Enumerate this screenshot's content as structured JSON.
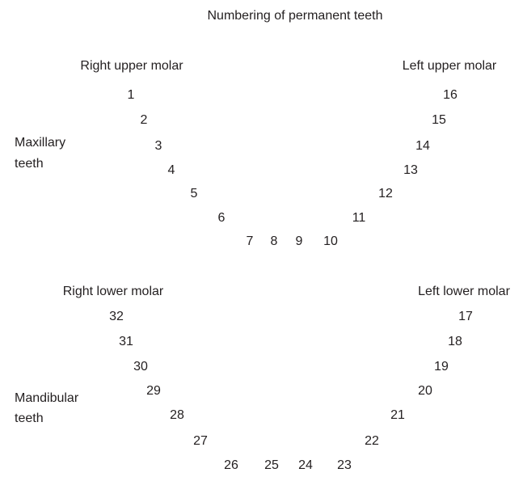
{
  "title": "Numbering of permanent teeth",
  "upper": {
    "right_label": "Right upper molar",
    "left_label": "Left upper molar",
    "group_label": [
      "Maxillary",
      "teeth"
    ],
    "teeth": [
      1,
      2,
      3,
      4,
      5,
      6,
      7,
      8,
      9,
      10,
      11,
      12,
      13,
      14,
      15,
      16
    ]
  },
  "lower": {
    "right_label": "Right lower molar",
    "left_label": "Left lower molar",
    "group_label": [
      "Mandibular",
      "teeth"
    ],
    "teeth": [
      17,
      18,
      19,
      20,
      21,
      22,
      23,
      24,
      25,
      26,
      27,
      28,
      29,
      30,
      31,
      32
    ]
  }
}
